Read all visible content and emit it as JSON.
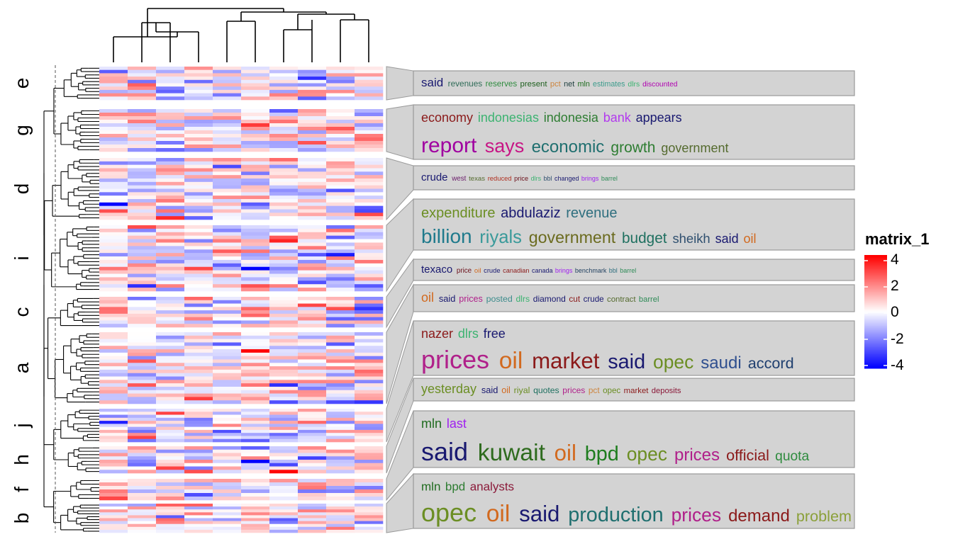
{
  "chart_data": {
    "type": "heatmap",
    "legend": {
      "title": "matrix_1",
      "ticks": [
        "4",
        "2",
        "0",
        "-2",
        "-4"
      ],
      "range": [
        -4.2,
        4.2
      ],
      "colors": {
        "low": "#0000FF",
        "mid": "#FFFFFF",
        "high": "#FF0000"
      },
      "placement": "right"
    },
    "columns": 10,
    "slices": [
      {
        "label": "e",
        "rows": 10
      },
      {
        "label": "g",
        "rows": 12
      },
      {
        "label": "d",
        "rows": 18
      },
      {
        "label": "i",
        "rows": 19
      },
      {
        "label": "c",
        "rows": 9
      },
      {
        "label": "a",
        "rows": 21
      },
      {
        "label": "j",
        "rows": 11
      },
      {
        "label": "h",
        "rows": 8
      },
      {
        "label": "f",
        "rows": 6
      },
      {
        "label": "b",
        "rows": 10
      }
    ],
    "word_clouds": [
      {
        "lines": [
          [
            {
              "w": "said",
              "c": "#191970"
            },
            {
              "w": "revenues",
              "c": "#2E6B57"
            },
            {
              "w": "reserves",
              "c": "#2E8B3E"
            },
            {
              "w": "present",
              "c": "#1E5F1E"
            },
            {
              "w": "pct",
              "c": "#CD853F"
            },
            {
              "w": "net",
              "c": "#1F3F3F"
            },
            {
              "w": "mln",
              "c": "#1E6B1E"
            },
            {
              "w": "estimates",
              "c": "#3C9C8C"
            },
            {
              "w": "dlrs",
              "c": "#3CB371"
            },
            {
              "w": "discounted",
              "c": "#B000B0"
            }
          ]
        ]
      },
      {
        "lines": [
          [
            {
              "w": "economy",
              "c": "#8B1A1A"
            },
            {
              "w": "indonesias",
              "c": "#3CB371"
            },
            {
              "w": "indonesia",
              "c": "#2E7D32"
            },
            {
              "w": "bank",
              "c": "#B23AEE"
            },
            {
              "w": "appears",
              "c": "#191970"
            }
          ],
          [
            {
              "w": "report",
              "c": "#A000A0"
            },
            {
              "w": "says",
              "c": "#C71585"
            },
            {
              "w": "economic",
              "c": "#1F6F6F"
            },
            {
              "w": "growth",
              "c": "#2E7D32"
            },
            {
              "w": "government",
              "c": "#556B2F"
            }
          ]
        ]
      },
      {
        "lines": [
          [
            {
              "w": "crude",
              "c": "#191970"
            },
            {
              "w": "west",
              "c": "#6A1B6A"
            },
            {
              "w": "texas",
              "c": "#556B2F"
            },
            {
              "w": "reduced",
              "c": "#B03020"
            },
            {
              "w": "price",
              "c": "#6B0F1A"
            },
            {
              "w": "dlrs",
              "c": "#3CB371"
            },
            {
              "w": "bbl",
              "c": "#2F4F6F"
            },
            {
              "w": "changed",
              "c": "#191970"
            },
            {
              "w": "brings",
              "c": "#A020F0"
            },
            {
              "w": "barrel",
              "c": "#2E8B57"
            }
          ]
        ]
      },
      {
        "lines": [
          [
            {
              "w": "expenditure",
              "c": "#6B8E23"
            },
            {
              "w": "abdulaziz",
              "c": "#191970"
            },
            {
              "w": "revenue",
              "c": "#2F6F7F"
            }
          ],
          [
            {
              "w": "billion",
              "c": "#1F7A8C"
            },
            {
              "w": "riyals",
              "c": "#3A9A9A"
            },
            {
              "w": "government",
              "c": "#6B6B1F"
            },
            {
              "w": "budget",
              "c": "#1F7060"
            },
            {
              "w": "sheikh",
              "c": "#2F4F6F"
            },
            {
              "w": "said",
              "c": "#191970"
            },
            {
              "w": "oil",
              "c": "#D2691E"
            }
          ]
        ]
      },
      {
        "lines": [
          [
            {
              "w": "texaco",
              "c": "#191970"
            },
            {
              "w": "price",
              "c": "#6B0F1A"
            },
            {
              "w": "oil",
              "c": "#D2691E"
            },
            {
              "w": "crude",
              "c": "#191970"
            },
            {
              "w": "canadian",
              "c": "#8B1A1A"
            },
            {
              "w": "canada",
              "c": "#191970"
            },
            {
              "w": "brings",
              "c": "#A020F0"
            },
            {
              "w": "benchmark",
              "c": "#1F3F5F"
            },
            {
              "w": "bbl",
              "c": "#2F6F7F"
            },
            {
              "w": "barrel",
              "c": "#2E8B57"
            }
          ]
        ]
      },
      {
        "lines": [
          [
            {
              "w": "oil",
              "c": "#D2691E"
            },
            {
              "w": "said",
              "c": "#191970"
            },
            {
              "w": "prices",
              "c": "#B0208A"
            },
            {
              "w": "posted",
              "c": "#3C8C8C"
            },
            {
              "w": "dlrs",
              "c": "#3CB371"
            },
            {
              "w": "diamond",
              "c": "#191970"
            },
            {
              "w": "cut",
              "c": "#8B1A1A"
            },
            {
              "w": "crude",
              "c": "#191970"
            },
            {
              "w": "contract",
              "c": "#556B2F"
            },
            {
              "w": "barrel",
              "c": "#2E8B57"
            }
          ]
        ]
      },
      {
        "lines": [
          [
            {
              "w": "nazer",
              "c": "#8B1A1A"
            },
            {
              "w": "dlrs",
              "c": "#3CB371"
            },
            {
              "w": "free",
              "c": "#191970"
            }
          ],
          [
            {
              "w": "prices",
              "c": "#B0208A"
            },
            {
              "w": "oil",
              "c": "#D2691E"
            },
            {
              "w": "market",
              "c": "#8B1A1A"
            },
            {
              "w": "said",
              "c": "#191970"
            },
            {
              "w": "opec",
              "c": "#6B8E23"
            },
            {
              "w": "saudi",
              "c": "#2F4F8F"
            },
            {
              "w": "accord",
              "c": "#1F3F6F"
            }
          ]
        ]
      },
      {
        "lines": [
          [
            {
              "w": "yesterday",
              "c": "#6B8E23"
            },
            {
              "w": "said",
              "c": "#191970"
            },
            {
              "w": "oil",
              "c": "#D2691E"
            },
            {
              "w": "riyal",
              "c": "#6B8E23"
            },
            {
              "w": "quotes",
              "c": "#1F7060"
            },
            {
              "w": "prices",
              "c": "#B0208A"
            },
            {
              "w": "pct",
              "c": "#CD853F"
            },
            {
              "w": "opec",
              "c": "#6B8E23"
            },
            {
              "w": "market",
              "c": "#8B1A1A"
            },
            {
              "w": "deposits",
              "c": "#8B1A3A"
            }
          ]
        ]
      },
      {
        "lines": [
          [
            {
              "w": "mln",
              "c": "#1E6B1E"
            },
            {
              "w": "last",
              "c": "#A020F0"
            }
          ],
          [
            {
              "w": "said",
              "c": "#191970"
            },
            {
              "w": "kuwait",
              "c": "#2E6B1E"
            },
            {
              "w": "oil",
              "c": "#D2691E"
            },
            {
              "w": "bpd",
              "c": "#1E7D1E"
            },
            {
              "w": "opec",
              "c": "#6B8E23"
            },
            {
              "w": "prices",
              "c": "#B0208A"
            },
            {
              "w": "official",
              "c": "#8B1A1A"
            },
            {
              "w": "quota",
              "c": "#2E8B3E"
            }
          ]
        ]
      },
      {
        "lines": [
          [
            {
              "w": "mln",
              "c": "#1E6B1E"
            },
            {
              "w": "bpd",
              "c": "#2E7D32"
            },
            {
              "w": "analysts",
              "c": "#8B1A3A"
            }
          ],
          [
            {
              "w": "opec",
              "c": "#6B8E23"
            },
            {
              "w": "oil",
              "c": "#D2691E"
            },
            {
              "w": "said",
              "c": "#191970"
            },
            {
              "w": "production",
              "c": "#1F6F6F"
            },
            {
              "w": "prices",
              "c": "#B0208A"
            },
            {
              "w": "demand",
              "c": "#8B1A1A"
            },
            {
              "w": "problem",
              "c": "#8BA03A"
            }
          ]
        ]
      }
    ]
  }
}
